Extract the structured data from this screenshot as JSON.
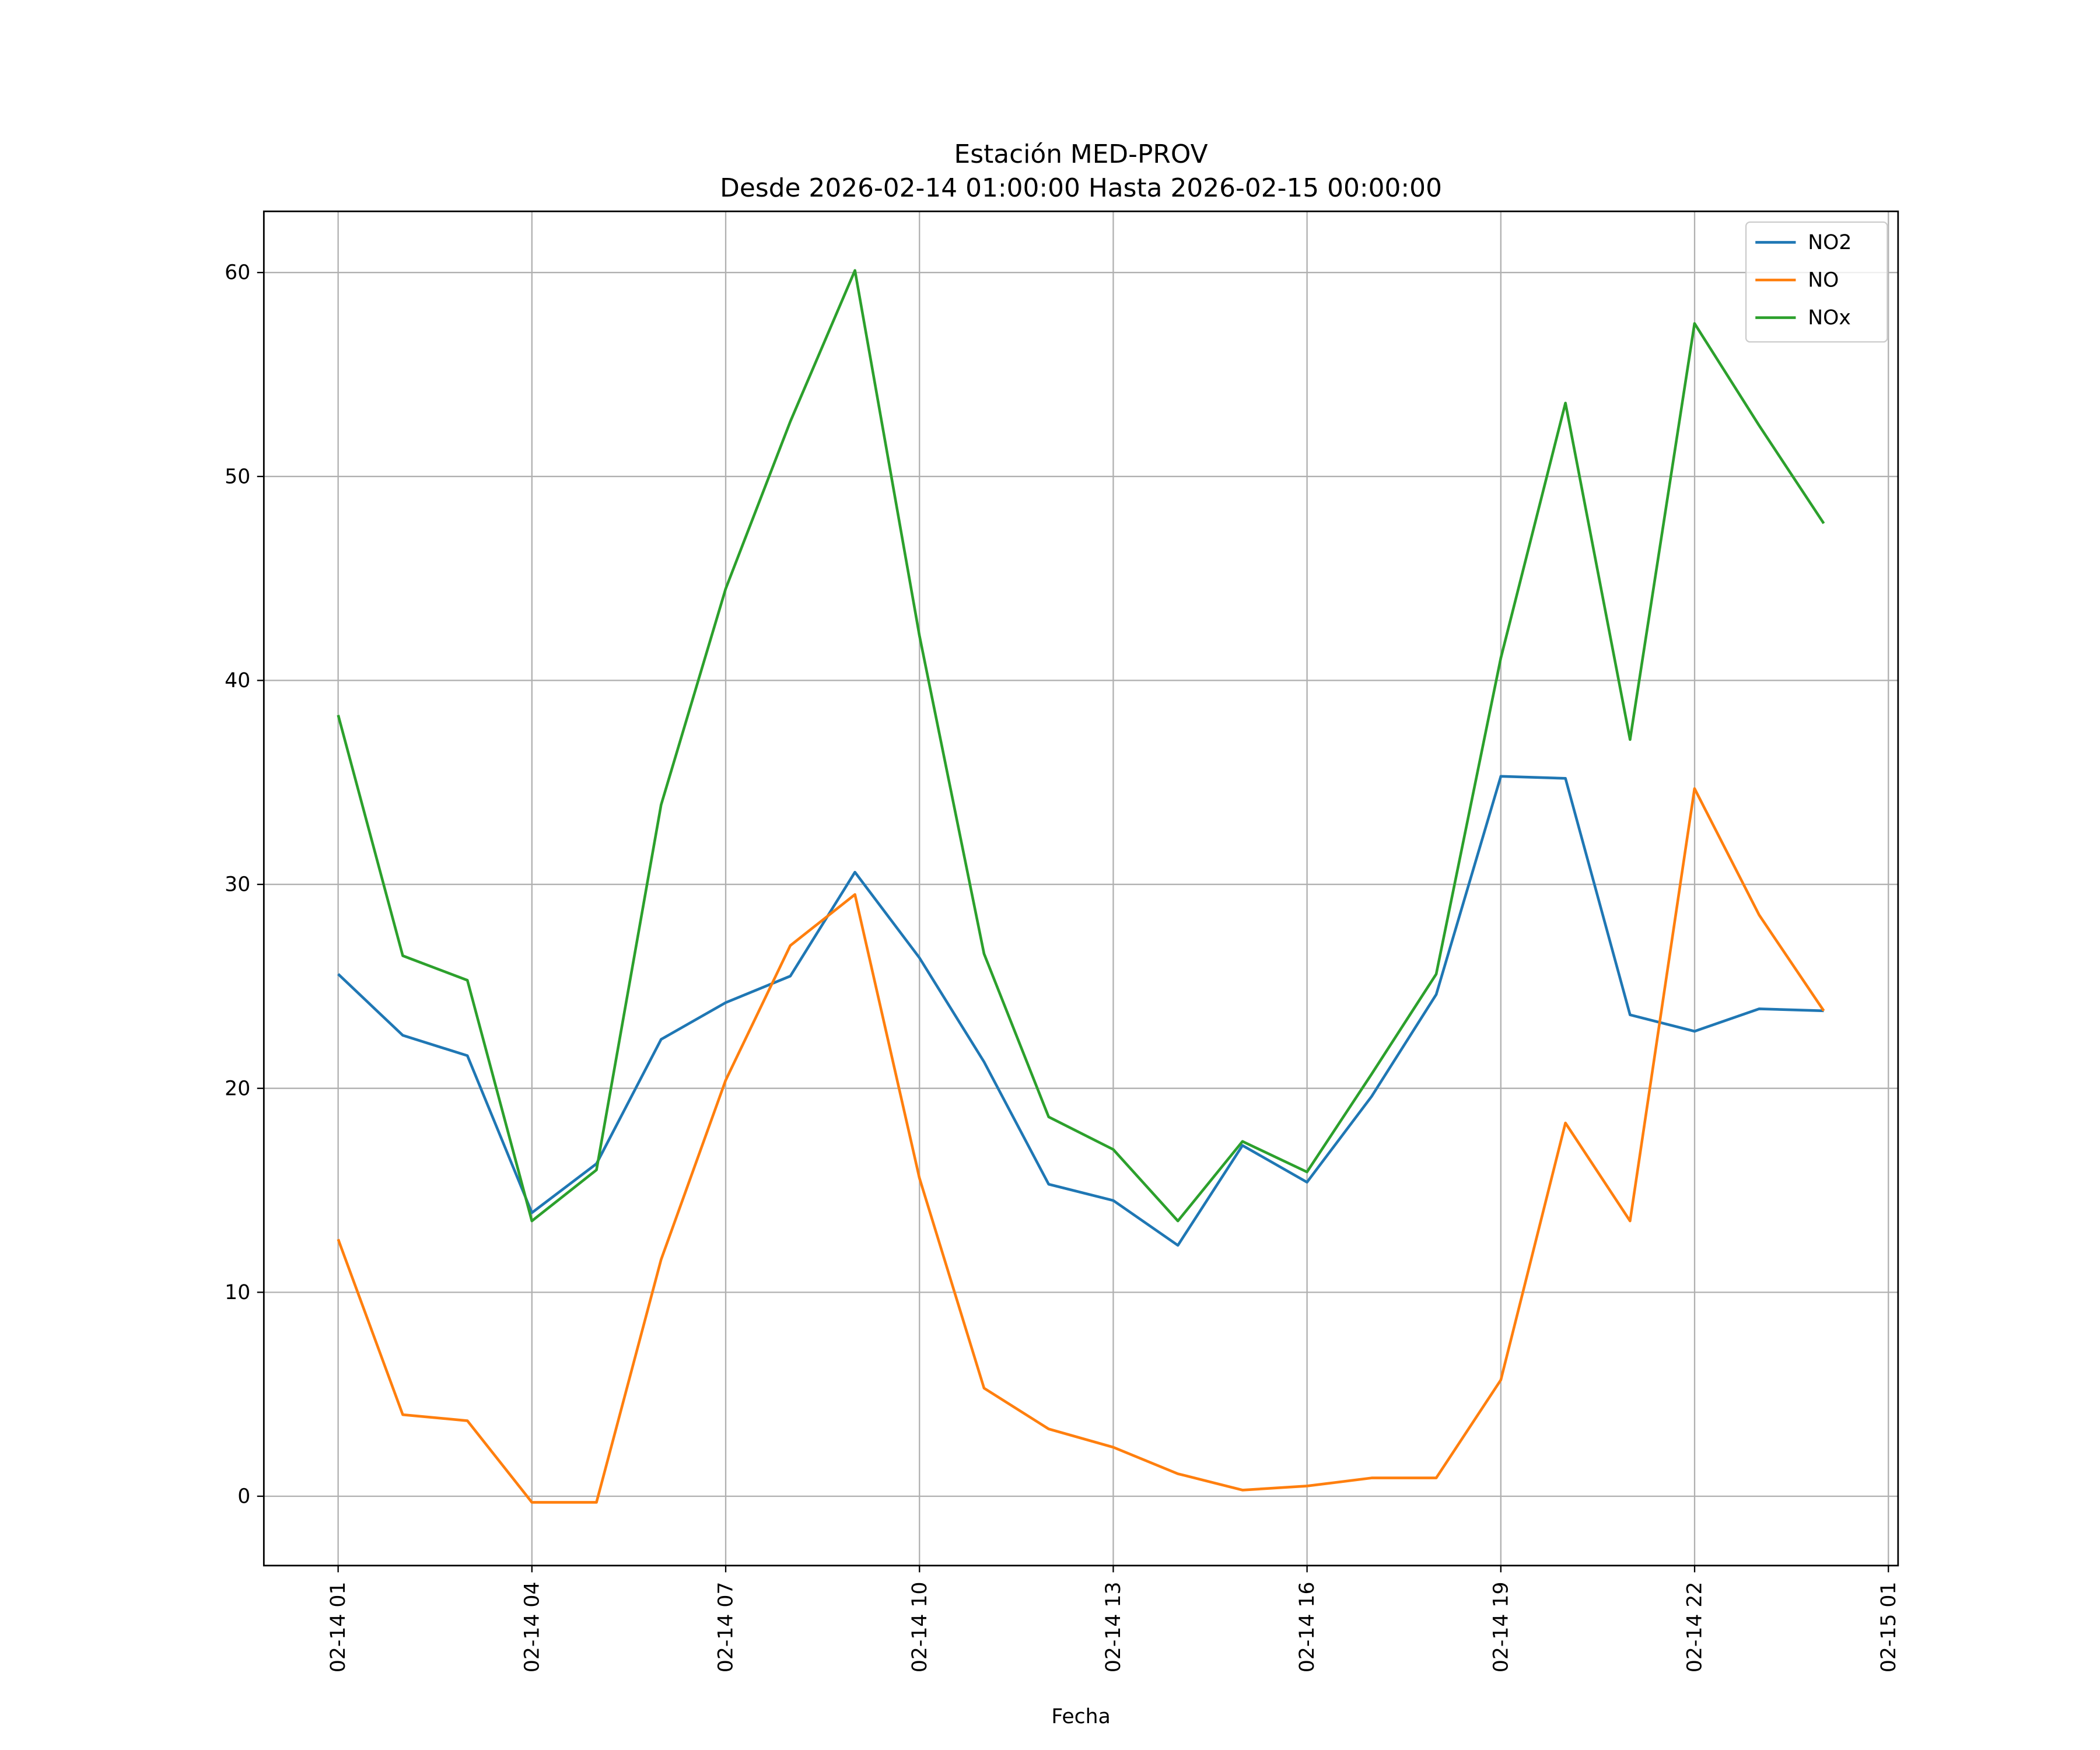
{
  "chart_data": {
    "type": "line",
    "title": "Estación MED-PROV",
    "subtitle": "Desde 2026-02-14 01:00:00 Hasta 2026-02-15 00:00:00",
    "xlabel": "Fecha",
    "ylabel": "",
    "x_hours_from_2026-02-14_00": [
      1,
      2,
      3,
      4,
      5,
      6,
      7,
      8,
      9,
      10,
      11,
      12,
      13,
      14,
      15,
      16,
      17,
      18,
      19,
      20,
      21,
      22,
      23,
      24
    ],
    "xlim": [
      -0.15,
      25.15
    ],
    "ylim": [
      -3.4,
      63.0
    ],
    "x_ticks": [
      1,
      4,
      7,
      10,
      13,
      16,
      19,
      22,
      25
    ],
    "x_tick_labels": [
      "02-14 01",
      "02-14 04",
      "02-14 07",
      "02-14 10",
      "02-14 13",
      "02-14 16",
      "02-14 19",
      "02-14 22",
      "02-15 01"
    ],
    "y_ticks": [
      0,
      10,
      20,
      30,
      40,
      50,
      60
    ],
    "y_tick_labels": [
      "0",
      "10",
      "20",
      "30",
      "40",
      "50",
      "60"
    ],
    "grid": true,
    "legend_position": "top-right",
    "series": [
      {
        "name": "NO2",
        "color": "#1f77b4",
        "values": [
          25.6,
          22.6,
          21.6,
          13.9,
          16.3,
          22.4,
          24.2,
          25.5,
          30.6,
          26.4,
          21.3,
          15.3,
          14.5,
          12.3,
          17.2,
          15.4,
          19.6,
          24.6,
          35.3,
          35.2,
          23.6,
          22.8,
          23.9,
          23.8
        ]
      },
      {
        "name": "NO",
        "color": "#ff7f0e",
        "values": [
          12.6,
          4.0,
          3.7,
          -0.3,
          -0.3,
          11.6,
          20.4,
          27.0,
          29.5,
          15.6,
          5.3,
          3.3,
          2.4,
          1.1,
          0.3,
          0.5,
          0.9,
          0.9,
          5.7,
          18.3,
          13.5,
          34.7,
          28.5,
          23.8
        ]
      },
      {
        "name": "NOx",
        "color": "#2ca02c",
        "values": [
          38.3,
          26.5,
          25.3,
          13.5,
          16.0,
          33.9,
          44.5,
          52.7,
          60.1,
          42.2,
          26.6,
          18.6,
          17.0,
          13.5,
          17.4,
          15.9,
          20.7,
          25.6,
          41.1,
          53.6,
          37.1,
          57.5,
          52.5,
          47.7
        ]
      }
    ]
  }
}
